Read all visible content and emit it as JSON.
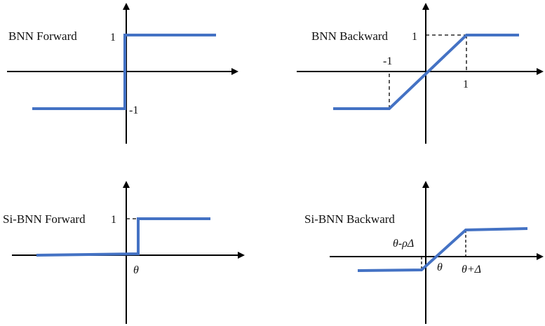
{
  "colors": {
    "curve": "#4472C4",
    "axis": "#000000",
    "guide": "#000000"
  },
  "panels": {
    "bnn_forward": {
      "title": "BNN Forward",
      "tick_pos": "1",
      "tick_neg": "-1"
    },
    "bnn_backward": {
      "title": "BNN Backward",
      "tick_y_pos": "1",
      "tick_x_neg": "-1",
      "tick_x_pos": "1"
    },
    "si_bnn_forward": {
      "title": "Si-BNN Forward",
      "tick_y": "1",
      "tick_x": "θ"
    },
    "si_bnn_backward": {
      "title": "Si-BNN Backward",
      "tick_left": "θ-ρΔ",
      "tick_mid": "θ",
      "tick_right": "θ+Δ"
    }
  }
}
